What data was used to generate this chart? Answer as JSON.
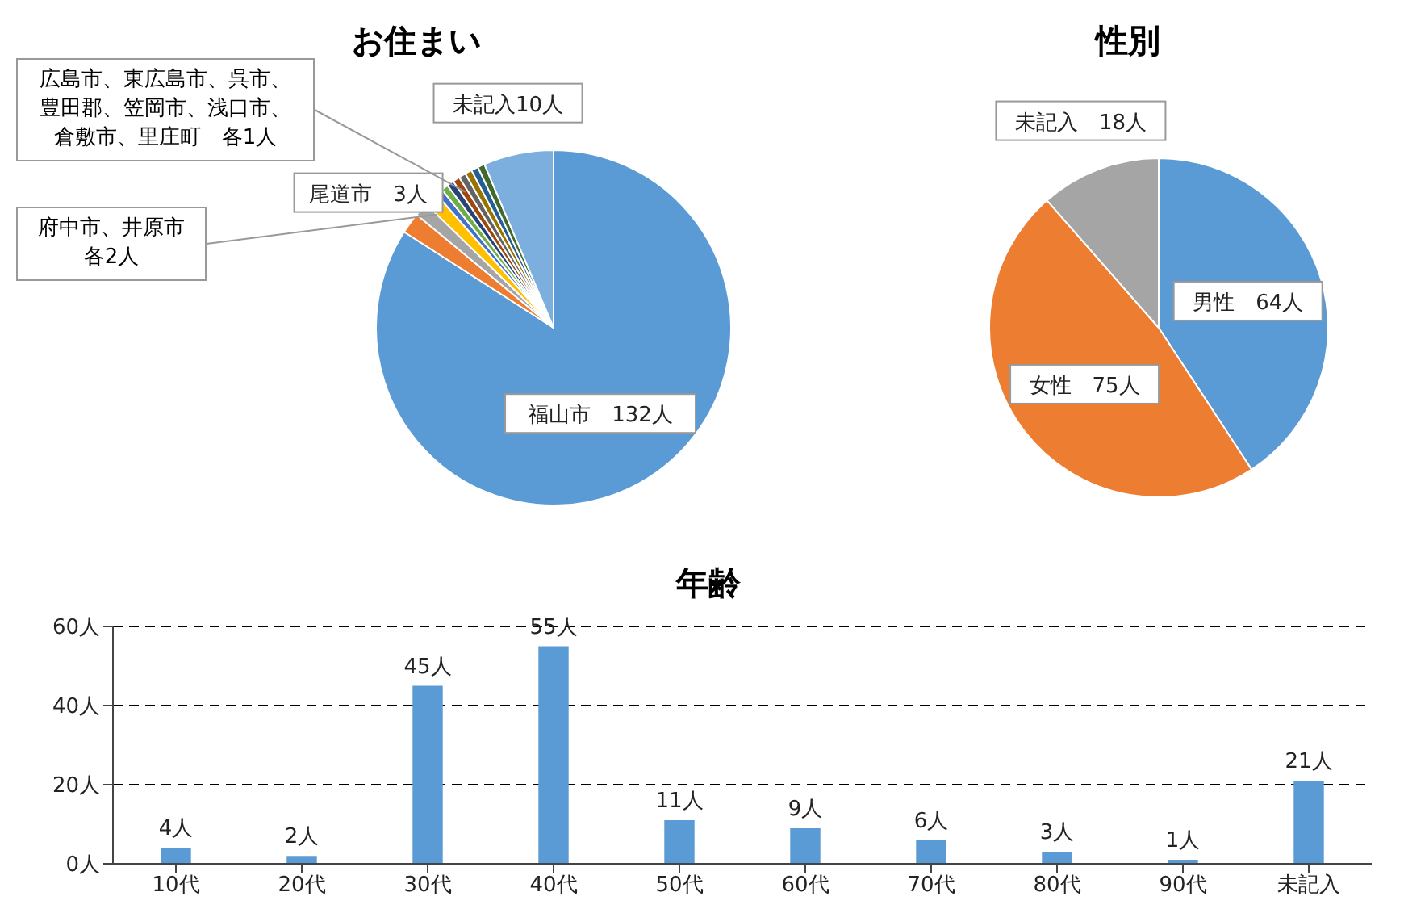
{
  "chart_data": [
    {
      "type": "pie",
      "title": "お住まい",
      "categories": [
        "福山市",
        "尾道市",
        null,
        null,
        null,
        null,
        null,
        null,
        null,
        null,
        null,
        null,
        "未記入"
      ],
      "values": [
        132,
        3,
        2,
        2,
        1,
        1,
        1,
        1,
        1,
        1,
        1,
        1,
        10
      ],
      "colors": [
        "#5b9bd5",
        "#ed7d31",
        "#a5a5a5",
        "#ffc000",
        "#4472c4",
        "#70ad47",
        "#264478",
        "#9e480e",
        "#636363",
        "#997300",
        "#255e91",
        "#43682b",
        "#7cafdd"
      ],
      "value_labels": [
        "132人",
        "3人",
        null,
        null,
        null,
        null,
        null,
        null,
        null,
        null,
        null,
        null,
        "10人"
      ],
      "annotations": [
        "府中市、井原市各2人",
        "広島市、東広島市、呉市、豊田郡、笠岡市、浅口市、倉敷市、里庄町　各1人"
      ]
    },
    {
      "type": "pie",
      "title": "性別",
      "categories": [
        "男性",
        "女性",
        "未記入"
      ],
      "values": [
        64,
        75,
        18
      ],
      "colors": [
        "#5b9bd5",
        "#ed7d31",
        "#a5a5a5"
      ],
      "value_labels": [
        "64人",
        "75人",
        "18人"
      ]
    },
    {
      "type": "bar",
      "title": "年齢",
      "categories": [
        "10代",
        "20代",
        "30代",
        "40代",
        "50代",
        "60代",
        "70代",
        "80代",
        "90代",
        "未記入"
      ],
      "values": [
        4,
        2,
        45,
        55,
        11,
        9,
        6,
        3,
        1,
        21
      ],
      "color": "#5b9bd5",
      "value_labels": [
        "4人",
        "2人",
        "45人",
        "55人",
        "11人",
        "9人",
        "6人",
        "3人",
        "1人",
        "21人"
      ],
      "ylim": [
        0,
        60
      ],
      "yticks": [
        {
          "value": 0,
          "label": "0人"
        },
        {
          "value": 20,
          "label": "20人"
        },
        {
          "value": 40,
          "label": "40人"
        },
        {
          "value": 60,
          "label": "60人"
        }
      ],
      "grid": "y"
    }
  ]
}
